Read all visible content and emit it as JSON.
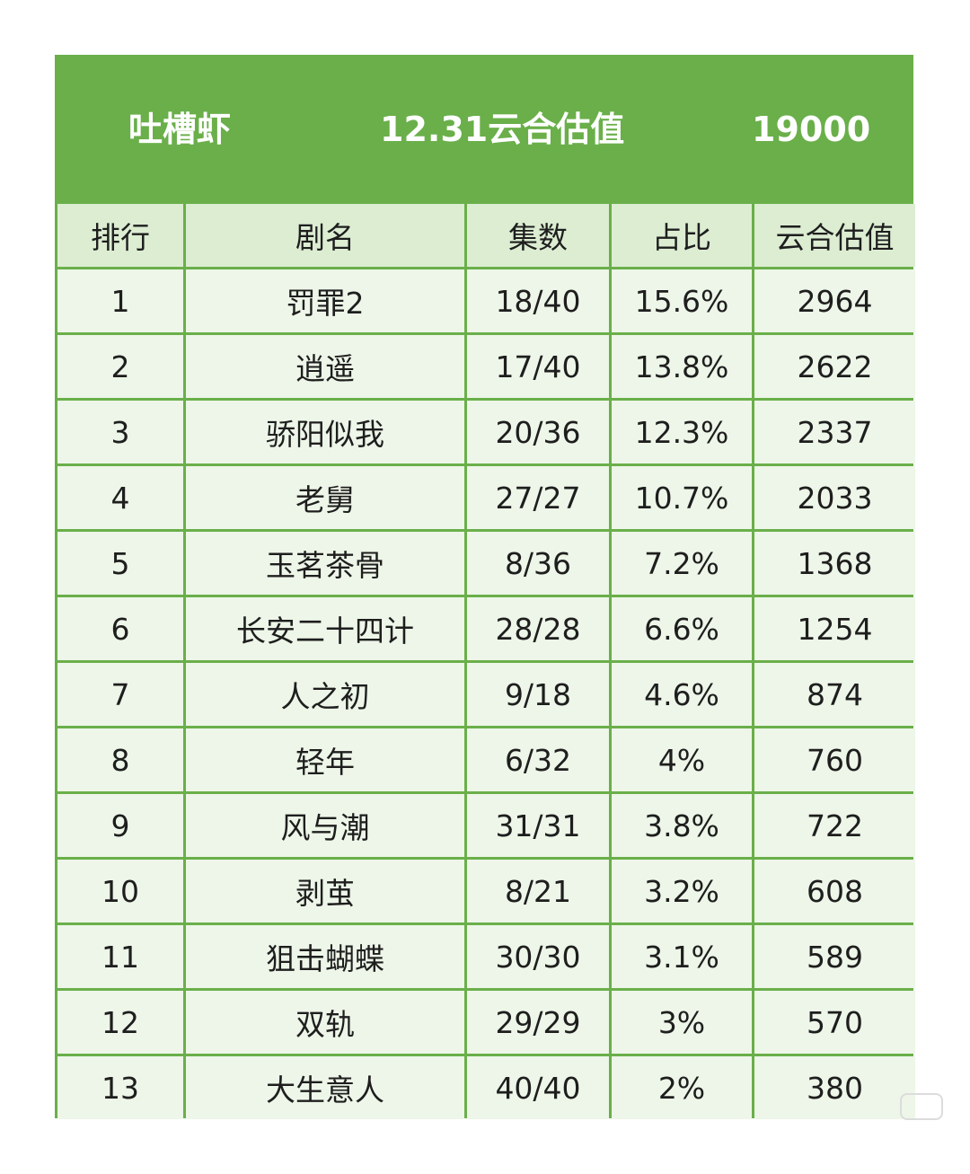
{
  "header": {
    "platform": "吐槽虾",
    "title": "12.31云合估值",
    "total": "19000"
  },
  "table": {
    "columns": [
      "排行",
      "剧名",
      "集数",
      "占比",
      "云合估值"
    ],
    "rows": [
      [
        "1",
        "罚罪2",
        "18/40",
        "15.6%",
        "2964"
      ],
      [
        "2",
        "逍遥",
        "17/40",
        "13.8%",
        "2622"
      ],
      [
        "3",
        "骄阳似我",
        "20/36",
        "12.3%",
        "2337"
      ],
      [
        "4",
        "老舅",
        "27/27",
        "10.7%",
        "2033"
      ],
      [
        "5",
        "玉茗茶骨",
        "8/36",
        "7.2%",
        "1368"
      ],
      [
        "6",
        "长安二十四计",
        "28/28",
        "6.6%",
        "1254"
      ],
      [
        "7",
        "人之初",
        "9/18",
        "4.6%",
        "874"
      ],
      [
        "8",
        "轻年",
        "6/32",
        "4%",
        "760"
      ],
      [
        "9",
        "风与潮",
        "31/31",
        "3.8%",
        "722"
      ],
      [
        "10",
        "剥茧",
        "8/21",
        "3.2%",
        "608"
      ],
      [
        "11",
        "狙击蝴蝶",
        "30/30",
        "3.1%",
        "589"
      ],
      [
        "12",
        "双轨",
        "29/29",
        "3%",
        "570"
      ],
      [
        "13",
        "大生意人",
        "40/40",
        "2%",
        "380"
      ]
    ]
  },
  "colors": {
    "header_green": "#6aaf4a",
    "cell_bg": "#edf6e8",
    "head_bg": "#dcedd2"
  }
}
